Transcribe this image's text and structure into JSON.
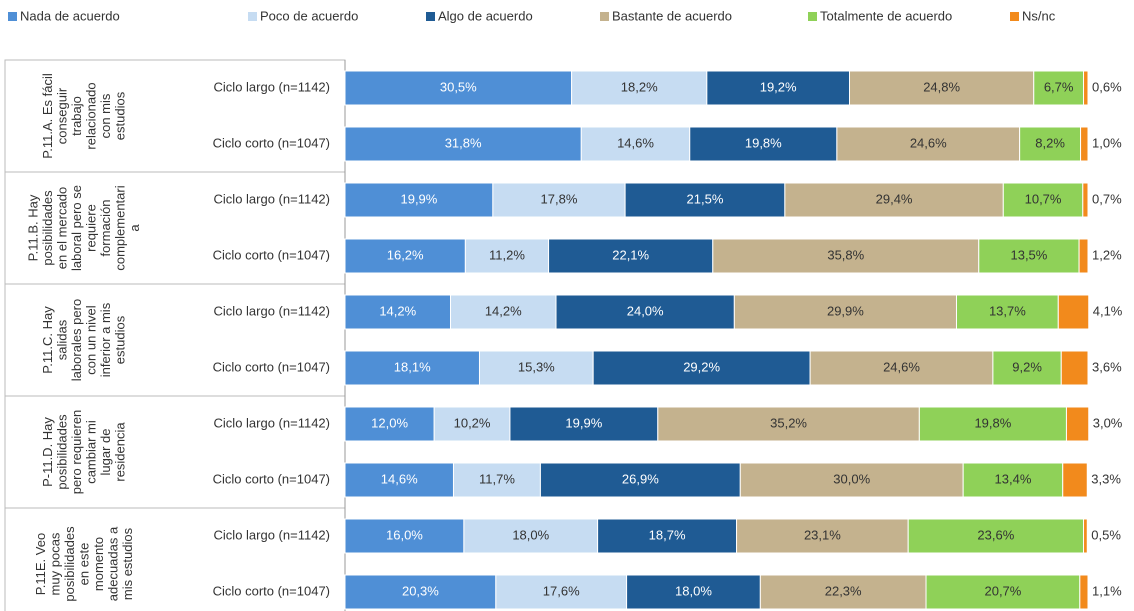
{
  "chart_data": {
    "type": "bar",
    "orientation": "horizontal",
    "stacked": true,
    "legend": "top",
    "groups": [
      {
        "lines": [
          "P.11.A. Es fácil",
          "conseguir",
          "trabajo",
          "relacionado",
          "con mis",
          "estudios"
        ]
      },
      {
        "lines": [
          "P.11.B. Hay",
          "posibilidades",
          "en el mercado",
          "laboral pero se",
          "requiere",
          "formación",
          "complementari",
          "a"
        ]
      },
      {
        "lines": [
          "P.11.C. Hay",
          "salidas",
          "laborales pero",
          "con un nivel",
          "inferior a mis",
          "estudios"
        ]
      },
      {
        "lines": [
          "P-11.D. Hay",
          "posibilidades",
          "pero requieren",
          "cambiar mi",
          "lugar de",
          "residencia"
        ]
      },
      {
        "lines": [
          "P.11E. Veo",
          "muy pocas",
          "posibilidades",
          "en este",
          "momento",
          "adecuadas a",
          "mis estudios"
        ]
      }
    ],
    "categories": [
      "Ciclo largo (n=1142)",
      "Ciclo corto (n=1047)",
      "Ciclo largo (n=1142)",
      "Ciclo corto (n=1047)",
      "Ciclo largo (n=1142)",
      "Ciclo corto (n=1047)",
      "Ciclo largo (n=1142)",
      "Ciclo corto (n=1047)",
      "Ciclo largo (n=1142)",
      "Ciclo corto (n=1047)"
    ],
    "series": [
      {
        "name": "Nada de acuerdo",
        "color": "#4f8fd6",
        "label_color": "#ffffff",
        "values": [
          30.5,
          31.8,
          19.9,
          16.2,
          14.2,
          18.1,
          12.0,
          14.6,
          16.0,
          20.3
        ],
        "value_labels": [
          "30,5%",
          "31,8%",
          "19,9%",
          "16,2%",
          "14,2%",
          "18,1%",
          "12,0%",
          "14,6%",
          "16,0%",
          "20,3%"
        ]
      },
      {
        "name": "Poco de acuerdo",
        "color": "#c6dcf2",
        "label_color": "#333333",
        "values": [
          18.2,
          14.6,
          17.8,
          11.2,
          14.2,
          15.3,
          10.2,
          11.7,
          18.0,
          17.6
        ],
        "value_labels": [
          "18,2%",
          "14,6%",
          "17,8%",
          "11,2%",
          "14,2%",
          "15,3%",
          "10,2%",
          "11,7%",
          "18,0%",
          "17,6%"
        ]
      },
      {
        "name": "Algo de acuerdo",
        "color": "#1f5b94",
        "label_color": "#ffffff",
        "values": [
          19.2,
          19.8,
          21.5,
          22.1,
          24.0,
          29.2,
          19.9,
          26.9,
          18.7,
          18.0
        ],
        "value_labels": [
          "19,2%",
          "19,8%",
          "21,5%",
          "22,1%",
          "24,0%",
          "29,2%",
          "19,9%",
          "26,9%",
          "18,7%",
          "18,0%"
        ]
      },
      {
        "name": "Bastante de acuerdo",
        "color": "#c4b28e",
        "label_color": "#333333",
        "values": [
          24.8,
          24.6,
          29.4,
          35.8,
          29.9,
          24.6,
          35.2,
          30.0,
          23.1,
          22.3
        ],
        "value_labels": [
          "24,8%",
          "24,6%",
          "29,4%",
          "35,8%",
          "29,9%",
          "24,6%",
          "35,2%",
          "30,0%",
          "23,1%",
          "22,3%"
        ]
      },
      {
        "name": "Totalmente de acuerdo",
        "color": "#8fd158",
        "label_color": "#333333",
        "values": [
          6.7,
          8.2,
          10.7,
          13.5,
          13.7,
          9.2,
          19.8,
          13.4,
          23.6,
          20.7
        ],
        "value_labels": [
          "6,7%",
          "8,2%",
          "10,7%",
          "13,5%",
          "13,7%",
          "9,2%",
          "19,8%",
          "13,4%",
          "23,6%",
          "20,7%"
        ]
      },
      {
        "name": "Ns/nc",
        "color": "#f28a1c",
        "label_color": "#333333",
        "label_outside": true,
        "values": [
          0.6,
          1.0,
          0.7,
          1.2,
          4.1,
          3.6,
          3.0,
          3.3,
          0.5,
          1.1
        ],
        "value_labels": [
          "0,6%",
          "1,0%",
          "0,7%",
          "1,2%",
          "4,1%",
          "3,6%",
          "3,0%",
          "3,3%",
          "0,5%",
          "1,1%"
        ]
      }
    ]
  }
}
